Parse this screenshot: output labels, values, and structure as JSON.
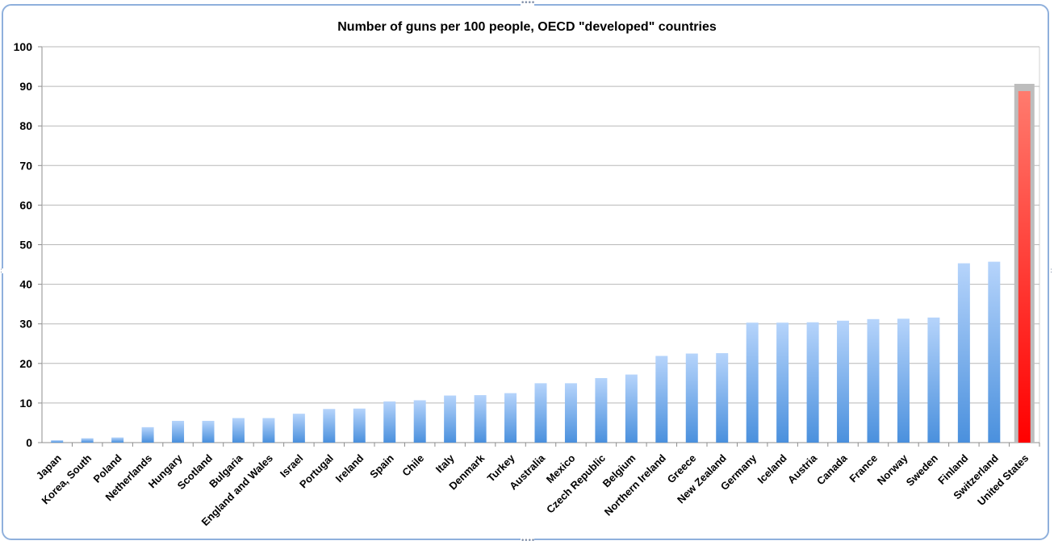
{
  "chart_data": {
    "type": "bar",
    "title": "Number of guns per 100 people, OECD \"developed\" countries",
    "xlabel": "",
    "ylabel": "",
    "ylim": [
      0,
      100
    ],
    "yticks": [
      0,
      10,
      20,
      30,
      40,
      50,
      60,
      70,
      80,
      90,
      100
    ],
    "grid": true,
    "legend": "none",
    "categories": [
      "Japan",
      "Korea, South",
      "Poland",
      "Netherlands",
      "Hungary",
      "Scotland",
      "Bulgaria",
      "England and Wales",
      "Israel",
      "Portugal",
      "Ireland",
      "Spain",
      "Chile",
      "Italy",
      "Denmark",
      "Turkey",
      "Australia",
      "Mexico",
      "Czech Republic",
      "Belgium",
      "Northern Ireland",
      "Greece",
      "New Zealand",
      "Germany",
      "Iceland",
      "Austria",
      "Canada",
      "France",
      "Norway",
      "Sweden",
      "Finland",
      "Switzerland",
      "United States"
    ],
    "values": [
      0.6,
      1.1,
      1.3,
      3.9,
      5.5,
      5.5,
      6.2,
      6.2,
      7.3,
      8.5,
      8.6,
      10.4,
      10.7,
      11.9,
      12.0,
      12.5,
      15.0,
      15.0,
      16.3,
      17.2,
      21.9,
      22.5,
      22.6,
      30.3,
      30.3,
      30.4,
      30.8,
      31.2,
      31.3,
      31.6,
      45.3,
      45.7,
      88.8
    ],
    "highlight": {
      "category": "United States",
      "color": "#ff1a1a"
    },
    "colors": {
      "bar_top": "#b6d4fb",
      "bar_bottom": "#4a90dd",
      "highlight_top": "#ff7b6e",
      "highlight_bottom": "#ff0000"
    }
  }
}
